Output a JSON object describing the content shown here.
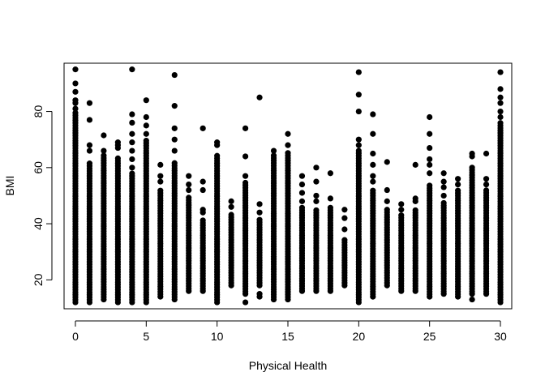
{
  "chart_data": {
    "type": "scatter",
    "title": "",
    "xlabel": "Physical Health",
    "ylabel": "BMI",
    "xlim": [
      -0.8,
      30.8
    ],
    "ylim": [
      9.7,
      97.2
    ],
    "xticks": [
      0,
      5,
      10,
      15,
      20,
      25,
      30
    ],
    "yticks": [
      20,
      40,
      60,
      80
    ],
    "grid": false,
    "legend": "none",
    "marker_color": "#000000",
    "columns": [
      {
        "x": 0,
        "dense": [
          12,
          80
        ],
        "outliers": [
          81,
          83,
          84,
          87,
          90,
          95
        ]
      },
      {
        "x": 1,
        "dense": [
          12,
          62
        ],
        "outliers": [
          66,
          68,
          77,
          83
        ]
      },
      {
        "x": 2,
        "dense": [
          13,
          65
        ],
        "outliers": [
          66,
          71.5
        ]
      },
      {
        "x": 3,
        "dense": [
          12,
          64
        ],
        "outliers": [
          67,
          68,
          69
        ]
      },
      {
        "x": 4,
        "dense": [
          12,
          58
        ],
        "outliers": [
          60,
          63,
          66,
          69,
          72,
          76,
          79,
          95
        ]
      },
      {
        "x": 5,
        "dense": [
          12,
          70
        ],
        "outliers": [
          72,
          75,
          78,
          84
        ]
      },
      {
        "x": 6,
        "dense": [
          14,
          52
        ],
        "outliers": [
          55,
          57,
          61
        ]
      },
      {
        "x": 7,
        "dense": [
          13,
          62
        ],
        "outliers": [
          66,
          70,
          74,
          82,
          93
        ]
      },
      {
        "x": 8,
        "dense": [
          16,
          50
        ],
        "outliers": [
          52,
          54,
          57
        ]
      },
      {
        "x": 9,
        "dense": [
          16,
          42
        ],
        "outliers": [
          44,
          45,
          52,
          55,
          74
        ]
      },
      {
        "x": 10,
        "dense": [
          12,
          65
        ],
        "outliers": [
          68,
          69
        ]
      },
      {
        "x": 11,
        "dense": [
          18,
          44
        ],
        "outliers": [
          46,
          48
        ]
      },
      {
        "x": 12,
        "dense": [
          15,
          55
        ],
        "outliers": [
          57,
          64,
          74,
          12
        ]
      },
      {
        "x": 13,
        "dense": [
          18,
          42
        ],
        "outliers": [
          44,
          47,
          85,
          14,
          15
        ]
      },
      {
        "x": 14,
        "dense": [
          13,
          65
        ],
        "outliers": [
          66
        ]
      },
      {
        "x": 15,
        "dense": [
          13,
          66
        ],
        "outliers": [
          68,
          72
        ]
      },
      {
        "x": 16,
        "dense": [
          16,
          46
        ],
        "outliers": [
          48,
          51,
          54,
          57
        ]
      },
      {
        "x": 17,
        "dense": [
          16,
          45
        ],
        "outliers": [
          48,
          50,
          55,
          60
        ]
      },
      {
        "x": 18,
        "dense": [
          16,
          46
        ],
        "outliers": [
          49,
          58
        ]
      },
      {
        "x": 19,
        "dense": [
          18,
          35
        ],
        "outliers": [
          38,
          42,
          45
        ]
      },
      {
        "x": 20,
        "dense": [
          12,
          66
        ],
        "outliers": [
          68,
          70,
          80,
          86,
          94
        ]
      },
      {
        "x": 21,
        "dense": [
          14,
          52
        ],
        "outliers": [
          55,
          57,
          61,
          65,
          72,
          79
        ]
      },
      {
        "x": 22,
        "dense": [
          18,
          45
        ],
        "outliers": [
          48,
          52,
          62
        ]
      },
      {
        "x": 23,
        "dense": [
          16,
          43
        ],
        "outliers": [
          45,
          47
        ]
      },
      {
        "x": 24,
        "dense": [
          16,
          45
        ],
        "outliers": [
          48,
          49,
          61
        ]
      },
      {
        "x": 25,
        "dense": [
          14,
          54
        ],
        "outliers": [
          58,
          61,
          63,
          67,
          72,
          78
        ]
      },
      {
        "x": 26,
        "dense": [
          15,
          48
        ],
        "outliers": [
          50,
          53,
          55,
          58
        ]
      },
      {
        "x": 27,
        "dense": [
          14,
          52
        ],
        "outliers": [
          54,
          56
        ]
      },
      {
        "x": 28,
        "dense": [
          15,
          60
        ],
        "outliers": [
          64,
          65,
          13
        ]
      },
      {
        "x": 29,
        "dense": [
          15,
          52
        ],
        "outliers": [
          54,
          56,
          65
        ]
      },
      {
        "x": 30,
        "dense": [
          12,
          76
        ],
        "outliers": [
          78,
          80,
          83,
          85,
          88,
          94
        ]
      }
    ]
  }
}
